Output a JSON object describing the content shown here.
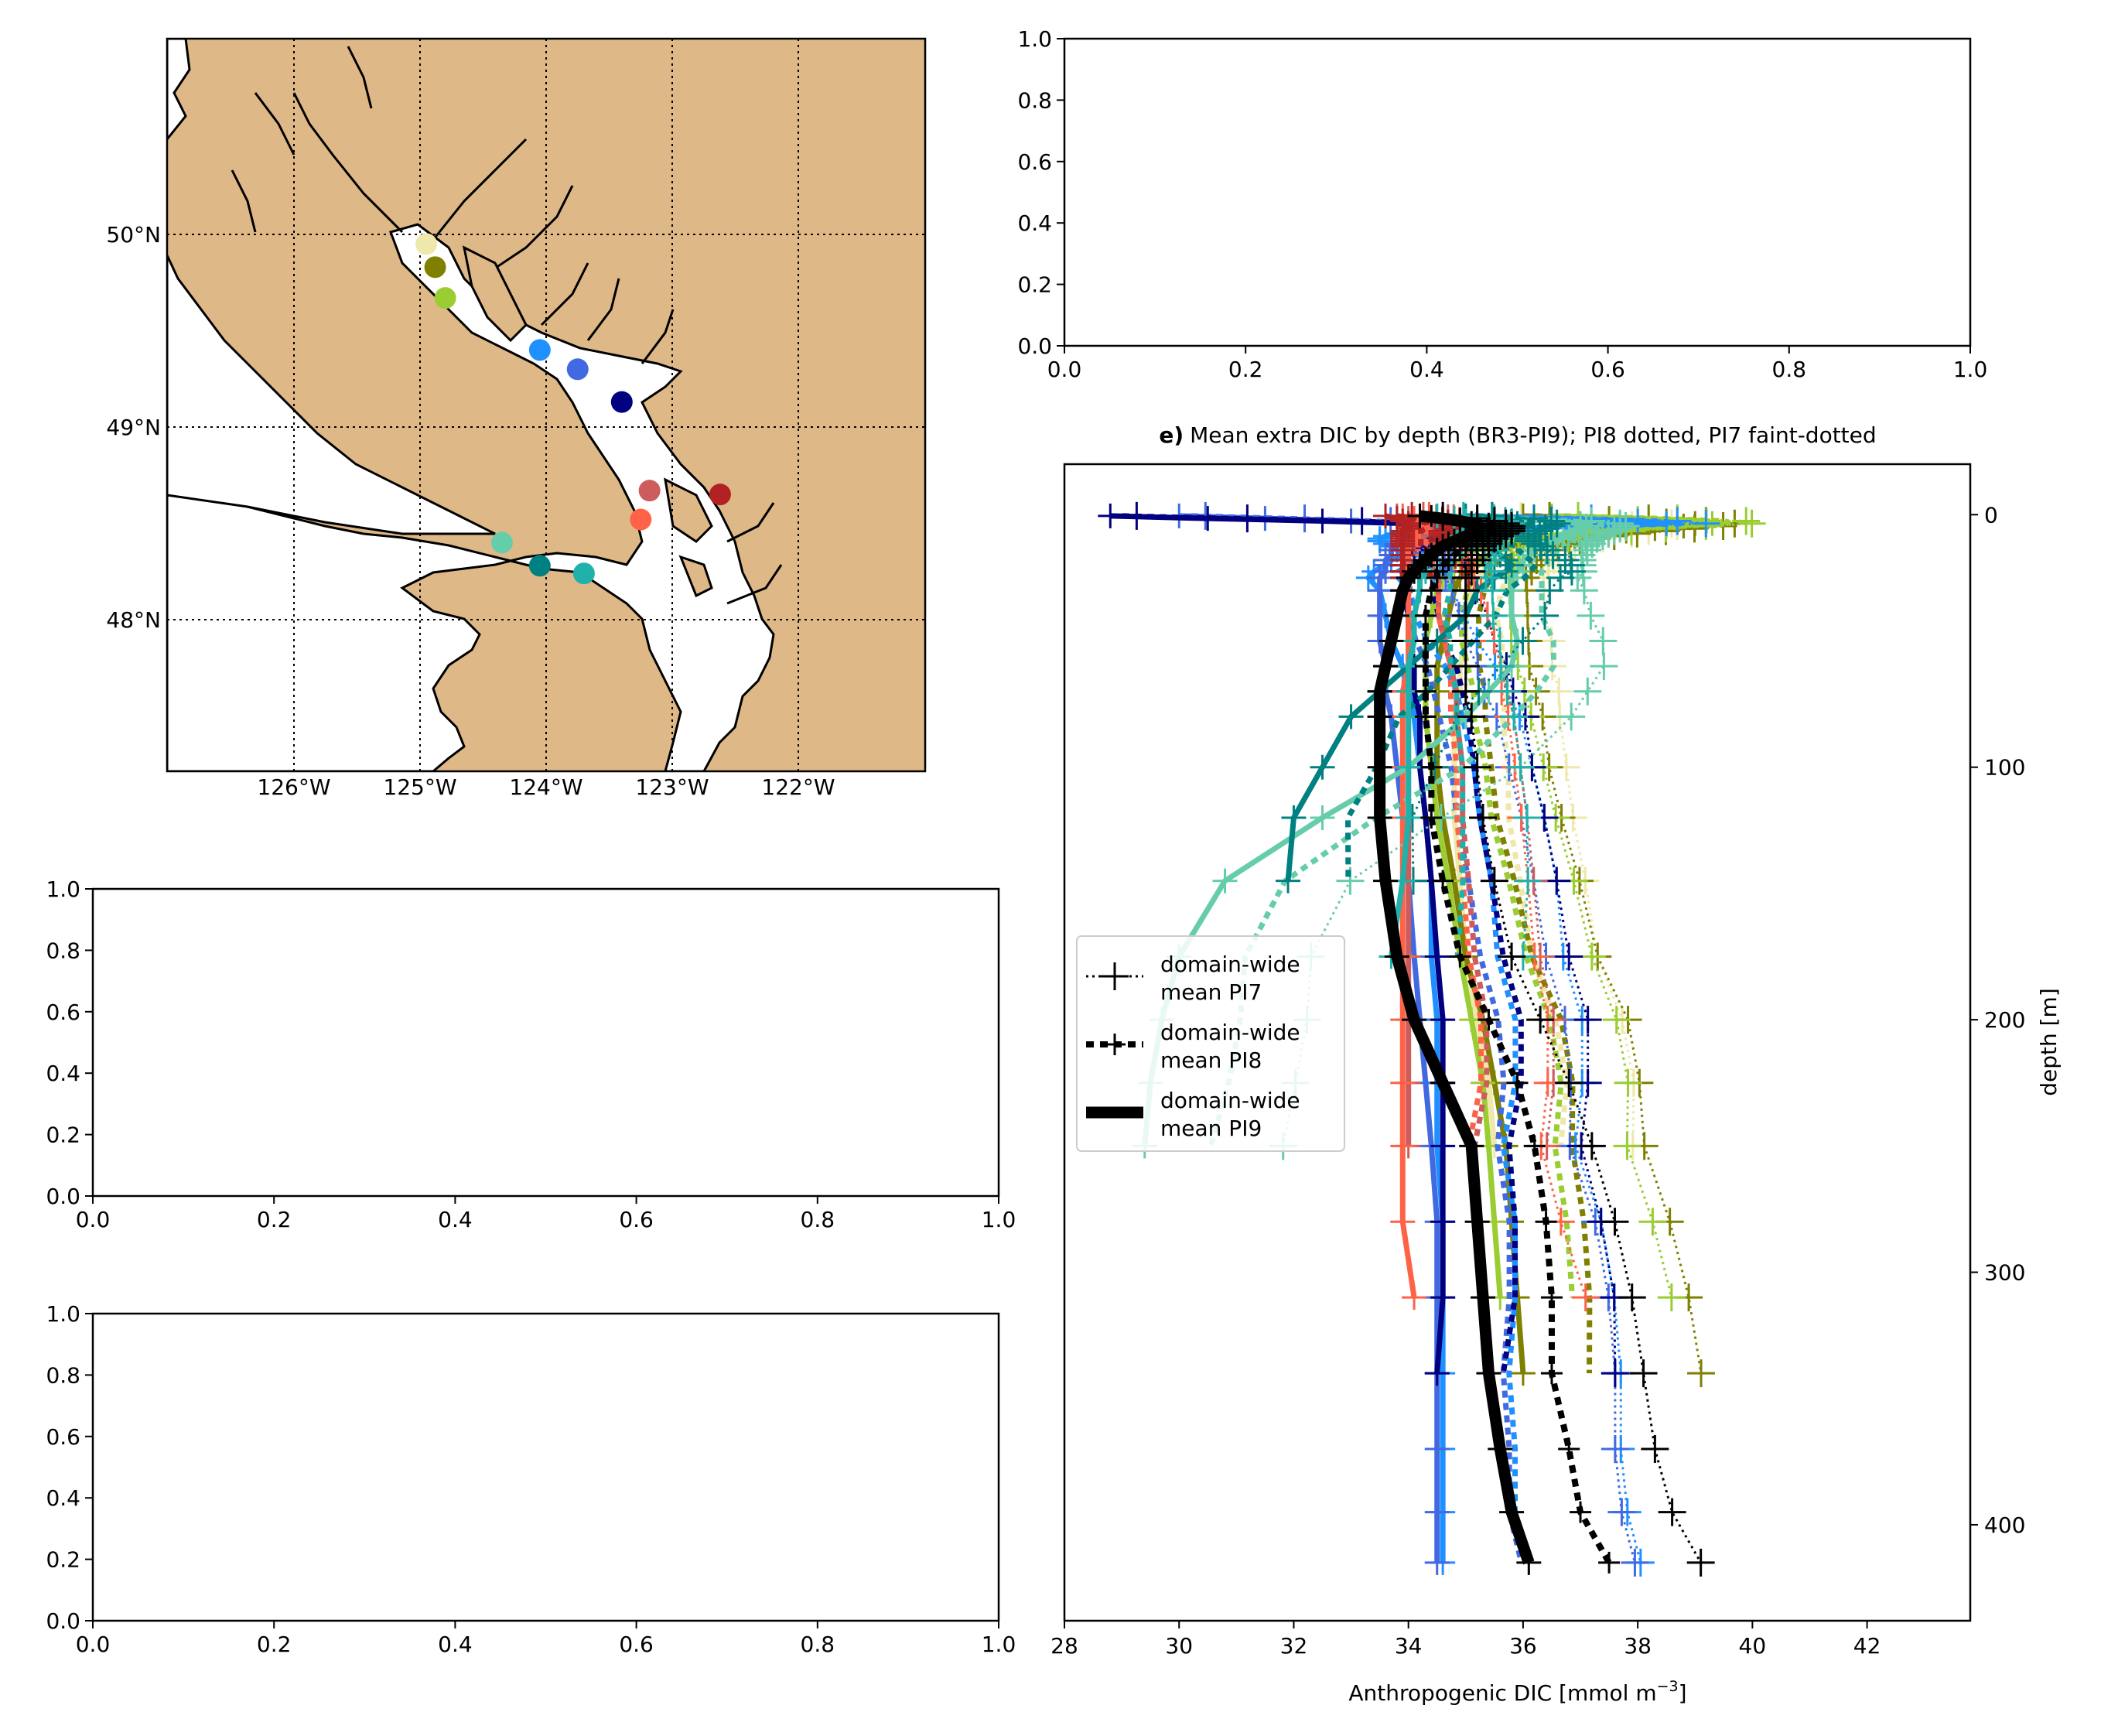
{
  "map": {
    "lon_ticks": [
      "126°W",
      "125°W",
      "124°W",
      "123°W",
      "122°W"
    ],
    "lat_ticks": [
      "50°N",
      "49°N",
      "48°N"
    ],
    "land_color": "#deb887",
    "stations": [
      {
        "lon": -124.95,
        "lat": 49.95,
        "color": "#eee8aa"
      },
      {
        "lon": -124.88,
        "lat": 49.83,
        "color": "#808000"
      },
      {
        "lon": -124.8,
        "lat": 49.67,
        "color": "#9acd32"
      },
      {
        "lon": -124.05,
        "lat": 49.4,
        "color": "#1e90ff"
      },
      {
        "lon": -123.75,
        "lat": 49.3,
        "color": "#4169e1"
      },
      {
        "lon": -123.4,
        "lat": 49.13,
        "color": "#000080"
      },
      {
        "lon": -123.18,
        "lat": 48.67,
        "color": "#cd5c5c"
      },
      {
        "lon": -123.25,
        "lat": 48.52,
        "color": "#ff6347"
      },
      {
        "lon": -122.62,
        "lat": 48.65,
        "color": "#b22222"
      },
      {
        "lon": -124.35,
        "lat": 48.4,
        "color": "#66cdaa"
      },
      {
        "lon": -124.05,
        "lat": 48.28,
        "color": "#008080"
      },
      {
        "lon": -123.7,
        "lat": 48.24,
        "color": "#20b2aa"
      }
    ]
  },
  "empty_axes": [
    {
      "id": "top-right",
      "xticks": [
        "0.0",
        "0.2",
        "0.4",
        "0.6",
        "0.8",
        "1.0"
      ],
      "yticks": [
        "0.0",
        "0.2",
        "0.4",
        "0.6",
        "0.8",
        "1.0"
      ]
    },
    {
      "id": "middle-left",
      "xticks": [
        "0.0",
        "0.2",
        "0.4",
        "0.6",
        "0.8",
        "1.0"
      ],
      "yticks": [
        "0.0",
        "0.2",
        "0.4",
        "0.6",
        "0.8",
        "1.0"
      ]
    },
    {
      "id": "bottom-left",
      "xticks": [
        "0.0",
        "0.2",
        "0.4",
        "0.6",
        "0.8",
        "1.0"
      ],
      "yticks": [
        "0.0",
        "0.2",
        "0.4",
        "0.6",
        "0.8",
        "1.0"
      ]
    }
  ],
  "chart_data": {
    "type": "line",
    "title_bold": "e)",
    "title": "Mean extra DIC by depth (BR3-PI9); PI8 dotted, PI7 faint-dotted",
    "xlabel": "Anthropogenic DIC [mmol m",
    "xlabel_sup": "−3",
    "xlabel_end": "]",
    "ylabel": "depth [m]",
    "xlim": [
      28,
      43.8
    ],
    "ylim": [
      438,
      -20
    ],
    "xticks": [
      28,
      30,
      32,
      34,
      36,
      38,
      40,
      42
    ],
    "yticks": [
      0,
      100,
      200,
      300,
      400
    ],
    "legend": {
      "placement": "center-left",
      "entries": [
        {
          "label": [
            "domain-wide",
            " mean PI7"
          ],
          "style": "pi7"
        },
        {
          "label": [
            "domain-wide",
            " mean PI8"
          ],
          "style": "pi8"
        },
        {
          "label": [
            "domain-wide",
            " mean PI9"
          ],
          "style": "pi9"
        }
      ]
    },
    "depths": [
      0.5,
      1.5,
      2.5,
      3.5,
      4.5,
      5.5,
      6.5,
      7.5,
      8.5,
      9.5,
      10.5,
      11.5,
      12.5,
      14,
      16,
      18,
      20,
      22.5,
      25,
      30,
      40,
      50,
      60,
      70,
      80,
      100,
      120,
      145,
      175,
      200,
      225,
      250,
      280,
      310,
      340,
      370,
      395,
      415
    ],
    "mean_pi9": [
      34.2,
      34.6,
      34.9,
      35.1,
      35.2,
      35.2,
      35.2,
      35.1,
      35.0,
      34.9,
      34.8,
      34.7,
      34.6,
      34.5,
      34.4,
      34.3,
      34.2,
      34.1,
      34.0,
      33.9,
      33.8,
      33.7,
      33.6,
      33.5,
      33.5,
      33.5,
      33.5,
      33.6,
      33.8,
      34.1,
      34.6,
      35.1,
      35.2,
      35.3,
      35.4,
      35.6,
      35.8,
      36.1
    ],
    "mean_pi8": [
      34.4,
      34.9,
      35.2,
      35.4,
      35.5,
      35.5,
      35.5,
      35.4,
      35.3,
      35.2,
      35.1,
      35.0,
      35.0,
      34.9,
      34.8,
      34.7,
      34.6,
      34.5,
      34.5,
      34.4,
      34.3,
      34.3,
      34.3,
      34.3,
      34.3,
      34.4,
      34.4,
      34.6,
      34.9,
      35.4,
      35.9,
      36.2,
      36.4,
      36.5,
      36.5,
      36.8,
      37.0,
      37.5
    ],
    "mean_pi7": [
      34.6,
      35.2,
      35.5,
      35.7,
      35.8,
      35.8,
      35.8,
      35.7,
      35.6,
      35.5,
      35.4,
      35.4,
      35.3,
      35.3,
      35.2,
      35.2,
      35.1,
      35.1,
      35.0,
      35.0,
      35.0,
      35.0,
      35.0,
      35.0,
      35.1,
      35.2,
      35.3,
      35.5,
      35.8,
      36.3,
      36.8,
      37.2,
      37.6,
      37.9,
      38.1,
      38.3,
      38.6,
      39.1
    ],
    "series": [
      {
        "color": "#eee8aa",
        "values": [
          35.5,
          36.5,
          37.5,
          37.9,
          38.0,
          37.8,
          37.5,
          37.2,
          36.9,
          36.7,
          36.5,
          36.3,
          36.1,
          35.9,
          35.7,
          35.5,
          35.4,
          35.3,
          35.2,
          35.1,
          35.0,
          35.0,
          34.9,
          34.9,
          34.8,
          34.8,
          34.8,
          34.9,
          35.0,
          35.2,
          35.4,
          35.5
        ]
      },
      {
        "color": "#808000",
        "values": [
          36.0,
          37.5,
          38.5,
          39.0,
          38.8,
          38.3,
          37.8,
          37.3,
          36.9,
          36.6,
          36.3,
          36.0,
          35.8,
          35.6,
          35.4,
          35.2,
          35.1,
          35.0,
          34.9,
          34.8,
          34.7,
          34.6,
          34.5,
          34.5,
          34.5,
          34.5,
          34.6,
          34.8,
          35.0,
          35.3,
          35.5,
          35.7,
          35.8,
          35.9,
          36.0
        ]
      },
      {
        "color": "#9acd32",
        "values": [
          36.5,
          38.0,
          39.2,
          39.3,
          38.5,
          37.8,
          37.2,
          36.8,
          36.4,
          36.1,
          35.8,
          35.6,
          35.4,
          35.2,
          35.0,
          34.9,
          34.8,
          34.7,
          34.6,
          34.5,
          34.4,
          34.3,
          34.3,
          34.3,
          34.3,
          34.4,
          34.5,
          34.7,
          34.9,
          35.1,
          35.3,
          35.4,
          35.5,
          35.6
        ]
      },
      {
        "color": "#1e90ff",
        "values": [
          35.0,
          36.5,
          38.0,
          38.5,
          37.0,
          35.5,
          34.5,
          33.8,
          33.6,
          33.5,
          33.5,
          33.6,
          33.7,
          33.8,
          33.9,
          33.7,
          33.6,
          33.4,
          33.3,
          33.5,
          33.6,
          33.7,
          33.9,
          34.0,
          34.1,
          34.2,
          34.3,
          34.4,
          34.4,
          34.5,
          34.5,
          34.5,
          34.6,
          34.6,
          34.6,
          34.6,
          34.6,
          34.6
        ]
      },
      {
        "color": "#4169e1",
        "values": [
          30.0,
          31.5,
          33.0,
          34.0,
          34.5,
          34.6,
          34.5,
          34.3,
          34.1,
          34.0,
          33.9,
          33.8,
          33.8,
          33.7,
          33.7,
          33.6,
          33.6,
          33.6,
          33.5,
          33.5,
          33.5,
          33.5,
          33.6,
          33.6,
          33.7,
          33.8,
          33.9,
          34.0,
          34.1,
          34.2,
          34.3,
          34.4,
          34.5,
          34.5,
          34.5,
          34.5,
          34.5,
          34.5
        ]
      },
      {
        "color": "#000080",
        "values": [
          28.8,
          30.5,
          32.5,
          34.0,
          34.8,
          35.0,
          35.0,
          34.9,
          34.7,
          34.5,
          34.4,
          34.3,
          34.2,
          34.1,
          34.0,
          34.0,
          33.9,
          33.9,
          33.9,
          33.9,
          34.0,
          34.0,
          34.1,
          34.1,
          34.2,
          34.2,
          34.3,
          34.4,
          34.5,
          34.6,
          34.6,
          34.6,
          34.6,
          34.6,
          34.5
        ]
      },
      {
        "color": "#cd5c5c",
        "values": [
          33.8,
          34.0,
          34.2,
          34.3,
          34.3,
          34.3,
          34.2,
          34.2,
          34.1,
          34.1,
          34.1,
          34.1,
          34.0,
          34.0,
          34.0,
          34.0,
          34.0,
          34.0,
          34.0,
          34.0,
          34.0,
          34.0,
          34.0,
          34.0,
          34.0,
          34.0,
          34.0,
          34.0,
          34.0,
          34.0,
          34.0,
          34.0
        ]
      },
      {
        "color": "#ff6347",
        "values": [
          33.9,
          34.1,
          34.2,
          34.2,
          34.2,
          34.1,
          34.1,
          34.0,
          34.0,
          34.0,
          34.0,
          34.0,
          34.0,
          34.0,
          34.0,
          34.0,
          34.0,
          34.0,
          34.0,
          34.0,
          34.0,
          34.0,
          34.0,
          33.9,
          33.9,
          33.9,
          33.9,
          33.9,
          33.9,
          33.9,
          33.9,
          33.9,
          33.9,
          34.1
        ]
      },
      {
        "color": "#b22222",
        "values": [
          33.6,
          33.8,
          33.9,
          34.0,
          34.0,
          34.0,
          33.9,
          33.9,
          33.9,
          33.9,
          33.9,
          33.9,
          33.9,
          33.9,
          33.9,
          33.9,
          33.9,
          33.9,
          33.9
        ]
      },
      {
        "color": "#66cdaa",
        "values": [
          34.5,
          35.5,
          36.5,
          37.0,
          37.1,
          37.0,
          36.9,
          36.8,
          36.7,
          36.6,
          36.5,
          36.4,
          36.3,
          36.2,
          36.1,
          36.0,
          36.0,
          35.9,
          35.8,
          35.8,
          35.8,
          35.9,
          35.8,
          35.4,
          35.0,
          34.0,
          32.5,
          30.8,
          30.0,
          29.7,
          29.5,
          29.4
        ]
      },
      {
        "color": "#008080",
        "values": [
          35.0,
          35.5,
          35.8,
          35.9,
          35.8,
          35.7,
          35.6,
          35.5,
          35.4,
          35.4,
          35.4,
          35.4,
          35.5,
          35.5,
          35.6,
          35.7,
          35.8,
          35.7,
          35.5,
          35.2,
          35.0,
          34.5,
          34.0,
          33.5,
          33.0,
          32.5,
          32.0,
          31.9
        ]
      },
      {
        "color": "#20b2aa",
        "values": [
          34.5,
          34.8,
          35.0,
          35.1,
          35.1,
          35.1,
          35.0,
          35.0,
          34.9,
          34.9,
          34.8,
          34.8,
          34.7,
          34.6,
          34.5,
          34.4,
          34.3,
          34.3,
          34.2,
          34.2,
          34.1,
          34.1,
          34.0,
          34.0,
          34.0,
          34.0,
          34.0,
          33.9,
          33.7
        ]
      }
    ]
  }
}
